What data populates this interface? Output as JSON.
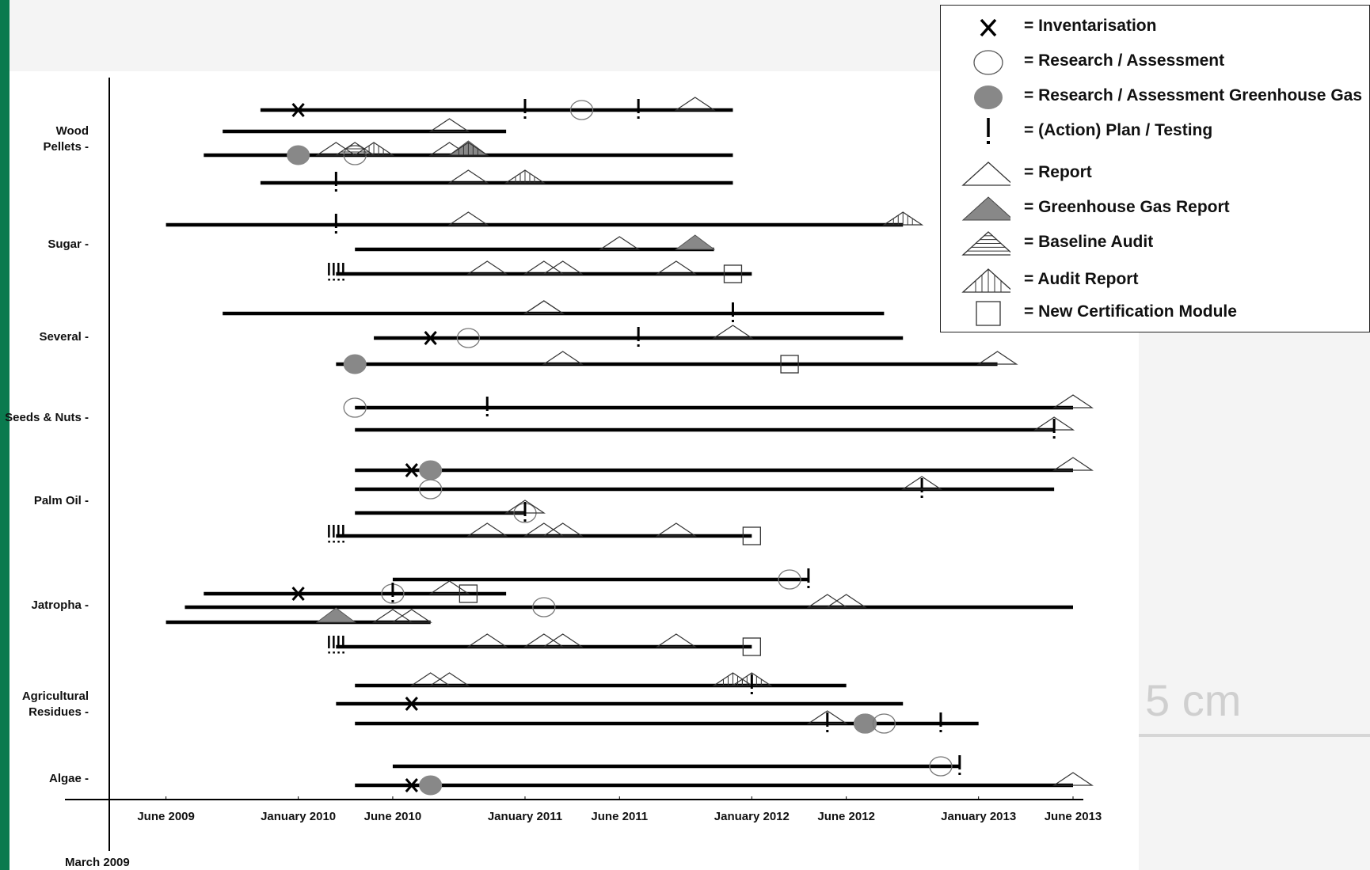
{
  "colors": {
    "side_bar": "#0a7a4e",
    "axis": "#000000",
    "marker_fill": "#888888"
  },
  "chart_data": {
    "type": "timeline",
    "x_axis": {
      "ticks": [
        {
          "label": "June 2009",
          "date": "2009-06"
        },
        {
          "label": "January 2010",
          "date": "2010-01"
        },
        {
          "label": "June 2010",
          "date": "2010-06"
        },
        {
          "label": "January 2011",
          "date": "2011-01"
        },
        {
          "label": "June 2011",
          "date": "2011-06"
        },
        {
          "label": "January 2012",
          "date": "2012-01"
        },
        {
          "label": "June 2012",
          "date": "2012-06"
        },
        {
          "label": "January 2013",
          "date": "2013-01"
        },
        {
          "label": "June 2013",
          "date": "2013-06"
        }
      ],
      "origin_label": "March 2009",
      "range": [
        "2009-03",
        "2013-06"
      ]
    },
    "categories": [
      {
        "label": "Wood\nPellets",
        "rows": [
          {
            "start": "2009-11",
            "end": "2011-12",
            "events": [
              {
                "type": "X",
                "date": "2010-01"
              },
              {
                "type": "!",
                "date": "2011-01"
              },
              {
                "type": "O",
                "date": "2011-04"
              },
              {
                "type": "!",
                "date": "2011-07"
              },
              {
                "type": "T",
                "date": "2011-10"
              }
            ]
          },
          {
            "start": "2009-09",
            "end": "2010-12",
            "events": [
              {
                "type": "T",
                "date": "2010-09"
              }
            ]
          },
          {
            "start": "2009-08",
            "end": "2011-12",
            "events": [
              {
                "type": "G",
                "date": "2010-01"
              },
              {
                "type": "T",
                "date": "2010-03"
              },
              {
                "type": "O",
                "date": "2010-04"
              },
              {
                "type": "B",
                "date": "2010-04"
              },
              {
                "type": "A",
                "date": "2010-05"
              },
              {
                "type": "T",
                "date": "2010-09"
              },
              {
                "type": "GT",
                "date": "2010-10"
              },
              {
                "type": "A",
                "date": "2010-10"
              }
            ]
          },
          {
            "start": "2009-11",
            "end": "2011-12",
            "events": [
              {
                "type": "!",
                "date": "2010-03"
              },
              {
                "type": "T",
                "date": "2010-10"
              },
              {
                "type": "A",
                "date": "2011-01"
              }
            ]
          }
        ]
      },
      {
        "label": "Sugar",
        "rows": [
          {
            "start": "2009-06",
            "end": "2012-09",
            "events": [
              {
                "type": "!",
                "date": "2010-03"
              },
              {
                "type": "T",
                "date": "2010-10"
              },
              {
                "type": "A",
                "date": "2012-09"
              }
            ]
          },
          {
            "start": "2010-04",
            "end": "2011-11",
            "events": [
              {
                "type": "T",
                "date": "2011-06"
              },
              {
                "type": "GT",
                "date": "2011-10"
              }
            ]
          },
          {
            "start": "2010-03",
            "end": "2012-01",
            "events": [
              {
                "type": "IIII",
                "date": "2010-03"
              },
              {
                "type": "T",
                "date": "2010-11"
              },
              {
                "type": "T",
                "date": "2011-02"
              },
              {
                "type": "T",
                "date": "2011-03"
              },
              {
                "type": "T",
                "date": "2011-09"
              },
              {
                "type": "S",
                "date": "2011-12"
              }
            ]
          }
        ]
      },
      {
        "label": "Several",
        "rows": [
          {
            "start": "2009-09",
            "end": "2012-08",
            "events": [
              {
                "type": "T",
                "date": "2011-02"
              },
              {
                "type": "T",
                "date": "2011-02"
              },
              {
                "type": "!",
                "date": "2011-12"
              }
            ]
          },
          {
            "start": "2010-05",
            "end": "2012-09",
            "events": [
              {
                "type": "X",
                "date": "2010-08"
              },
              {
                "type": "O",
                "date": "2010-10"
              },
              {
                "type": "!",
                "date": "2011-07"
              },
              {
                "type": "T",
                "date": "2011-12"
              }
            ]
          },
          {
            "start": "2010-03",
            "end": "2013-02",
            "events": [
              {
                "type": "G",
                "date": "2010-04"
              },
              {
                "type": "T",
                "date": "2011-03"
              },
              {
                "type": "S",
                "date": "2012-03"
              },
              {
                "type": "T",
                "date": "2013-02"
              }
            ]
          }
        ]
      },
      {
        "label": "Seeds & Nuts",
        "rows": [
          {
            "start": "2010-04",
            "end": "2013-06",
            "events": [
              {
                "type": "O",
                "date": "2010-04"
              },
              {
                "type": "!",
                "date": "2010-11"
              },
              {
                "type": "T",
                "date": "2013-06"
              }
            ]
          },
          {
            "start": "2010-04",
            "end": "2013-05",
            "events": [
              {
                "type": "T",
                "date": "2013-05"
              },
              {
                "type": "!",
                "date": "2013-05"
              }
            ]
          }
        ]
      },
      {
        "label": "Palm Oil",
        "rows": [
          {
            "start": "2010-04",
            "end": "2013-06",
            "events": [
              {
                "type": "X",
                "date": "2010-07"
              },
              {
                "type": "G",
                "date": "2010-08"
              },
              {
                "type": "T",
                "date": "2013-06"
              }
            ]
          },
          {
            "start": "2010-04",
            "end": "2013-05",
            "events": [
              {
                "type": "O",
                "date": "2010-08"
              },
              {
                "type": "!",
                "date": "2012-10"
              },
              {
                "type": "T",
                "date": "2012-10"
              }
            ]
          },
          {
            "start": "2010-04",
            "end": "2011-01",
            "events": [
              {
                "type": "O",
                "date": "2011-01"
              },
              {
                "type": "T",
                "date": "2011-01"
              },
              {
                "type": "!",
                "date": "2011-01"
              }
            ]
          },
          {
            "start": "2010-03",
            "end": "2012-01",
            "events": [
              {
                "type": "IIII",
                "date": "2010-03"
              },
              {
                "type": "T",
                "date": "2010-11"
              },
              {
                "type": "T",
                "date": "2011-02"
              },
              {
                "type": "T",
                "date": "2011-03"
              },
              {
                "type": "T",
                "date": "2011-09"
              },
              {
                "type": "S",
                "date": "2012-01"
              }
            ]
          }
        ]
      },
      {
        "label": "Jatropha",
        "rows": [
          {
            "start": "2010-06",
            "end": "2012-04",
            "events": [
              {
                "type": "O",
                "date": "2012-03"
              },
              {
                "type": "!",
                "date": "2012-04"
              }
            ]
          },
          {
            "start": "2009-08",
            "end": "2010-12",
            "events": [
              {
                "type": "X",
                "date": "2010-01"
              },
              {
                "type": "O",
                "date": "2010-06"
              },
              {
                "type": "!",
                "date": "2010-06"
              },
              {
                "type": "T",
                "date": "2010-09"
              },
              {
                "type": "S",
                "date": "2010-10"
              }
            ]
          },
          {
            "start": "2009-07",
            "end": "2013-06",
            "events": [
              {
                "type": "O",
                "date": "2011-02"
              },
              {
                "type": "T",
                "date": "2012-05"
              },
              {
                "type": "T",
                "date": "2012-06"
              }
            ]
          },
          {
            "start": "2009-06",
            "end": "2010-08",
            "events": [
              {
                "type": "GT",
                "date": "2010-03"
              },
              {
                "type": "T",
                "date": "2010-06"
              },
              {
                "type": "T",
                "date": "2010-07"
              }
            ]
          },
          {
            "start": "2010-03",
            "end": "2012-01",
            "events": [
              {
                "type": "IIII",
                "date": "2010-03"
              },
              {
                "type": "T",
                "date": "2010-11"
              },
              {
                "type": "T",
                "date": "2011-02"
              },
              {
                "type": "T",
                "date": "2011-03"
              },
              {
                "type": "T",
                "date": "2011-09"
              },
              {
                "type": "S",
                "date": "2012-01"
              }
            ]
          }
        ]
      },
      {
        "label": "Agricultural\nResidues",
        "rows": [
          {
            "start": "2010-04",
            "end": "2012-06",
            "events": [
              {
                "type": "T",
                "date": "2010-08"
              },
              {
                "type": "T",
                "date": "2010-09"
              },
              {
                "type": "A",
                "date": "2011-12"
              },
              {
                "type": "A",
                "date": "2012-01"
              },
              {
                "type": "!",
                "date": "2012-01"
              }
            ]
          },
          {
            "start": "2010-03",
            "end": "2012-09",
            "events": [
              {
                "type": "X",
                "date": "2010-07"
              }
            ]
          },
          {
            "start": "2010-04",
            "end": "2013-01",
            "events": [
              {
                "type": "T",
                "date": "2012-05"
              },
              {
                "type": "!",
                "date": "2012-05"
              },
              {
                "type": "O",
                "date": "2012-07"
              },
              {
                "type": "G",
                "date": "2012-07"
              },
              {
                "type": "O",
                "date": "2012-08"
              },
              {
                "type": "!",
                "date": "2012-11"
              }
            ]
          }
        ]
      },
      {
        "label": "Algae",
        "rows": [
          {
            "start": "2010-06",
            "end": "2012-12",
            "events": [
              {
                "type": "O",
                "date": "2012-11"
              },
              {
                "type": "!",
                "date": "2012-12"
              }
            ]
          },
          {
            "start": "2010-04",
            "end": "2013-06",
            "events": [
              {
                "type": "X",
                "date": "2010-07"
              },
              {
                "type": "G",
                "date": "2010-08"
              },
              {
                "type": "T",
                "date": "2013-06"
              }
            ]
          }
        ]
      }
    ]
  },
  "legend": {
    "items": [
      {
        "symbol": "X",
        "label": "= Inventarisation"
      },
      {
        "symbol": "O",
        "label": "= Research / Assessment"
      },
      {
        "symbol": "G",
        "label": "= Research / Assessment Greenhouse Gas"
      },
      {
        "symbol": "!",
        "label": "= (Action) Plan / Testing"
      },
      {
        "symbol": "T",
        "label": "= Report"
      },
      {
        "symbol": "GT",
        "label": "= Greenhouse Gas Report"
      },
      {
        "symbol": "B",
        "label": "= Baseline Audit"
      },
      {
        "symbol": "A",
        "label": "= Audit Report"
      },
      {
        "symbol": "S",
        "label": "= New Certification Module"
      }
    ]
  },
  "scale_text": "5 cm"
}
